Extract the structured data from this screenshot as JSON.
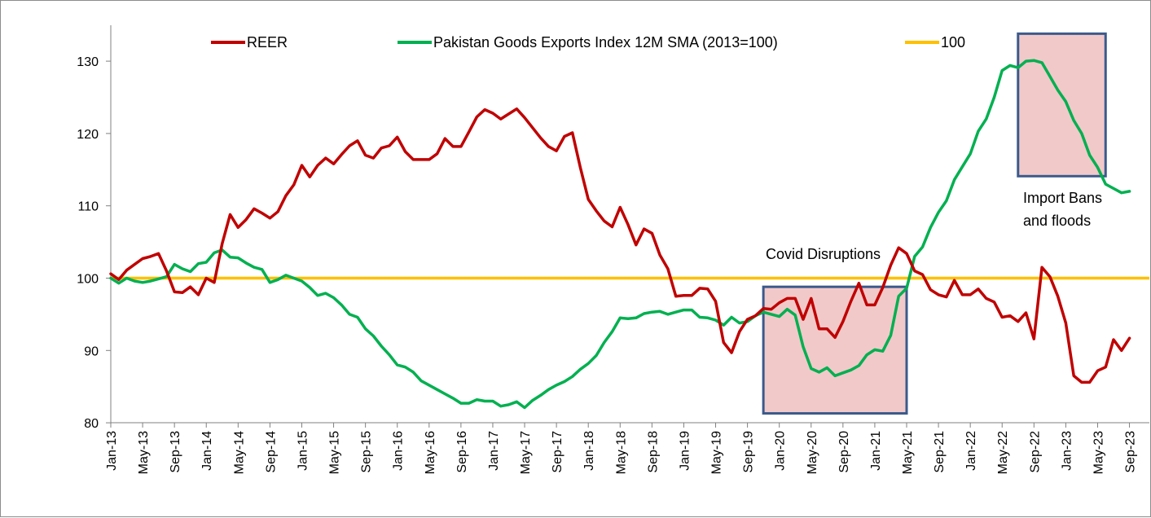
{
  "chart_data": {
    "type": "line",
    "title": "",
    "xlabel": "",
    "ylabel": "",
    "ylim": [
      80,
      135
    ],
    "yticks": [
      80,
      90,
      100,
      110,
      120,
      130
    ],
    "x_tick_labels": [
      "Jan-13",
      "May-13",
      "Sep-13",
      "Jan-14",
      "May-14",
      "Sep-14",
      "Jan-15",
      "May-15",
      "Sep-15",
      "Jan-16",
      "May-16",
      "Sep-16",
      "Jan-17",
      "May-17",
      "Sep-17",
      "Jan-18",
      "May-18",
      "Sep-18",
      "Jan-19",
      "May-19",
      "Sep-19",
      "Jan-20",
      "May-20",
      "Sep-20",
      "Jan-21",
      "May-21",
      "Sep-21",
      "Jan-22",
      "May-22",
      "Sep-22",
      "Jan-23",
      "May-23",
      "Sep-23"
    ],
    "x_start": "Jan-13",
    "legend_placement": "top",
    "grid": false,
    "series": [
      {
        "name": "REER",
        "color": "#c00000",
        "values": [
          100.6,
          99.8,
          101.1,
          101.9,
          102.7,
          103.0,
          103.4,
          101.0,
          98.1,
          98.0,
          98.8,
          97.7,
          100.0,
          99.4,
          104.8,
          108.8,
          107.0,
          108.1,
          109.6,
          109.0,
          108.3,
          109.2,
          111.4,
          112.9,
          115.6,
          114.0,
          115.6,
          116.6,
          115.8,
          117.1,
          118.3,
          119.0,
          117.0,
          116.6,
          118.0,
          118.3,
          119.5,
          117.5,
          116.4,
          116.4,
          116.4,
          117.2,
          119.3,
          118.2,
          118.2,
          120.2,
          122.3,
          123.3,
          122.8,
          122.0,
          122.7,
          123.4,
          122.2,
          120.8,
          119.4,
          118.2,
          117.6,
          119.6,
          120.1,
          115.3,
          110.9,
          109.3,
          107.9,
          107.1,
          109.8,
          107.4,
          104.6,
          106.8,
          106.2,
          103.2,
          101.3,
          97.5,
          97.6,
          97.6,
          98.6,
          98.5,
          96.8,
          91.1,
          89.7,
          92.6,
          94.3,
          94.8,
          95.8,
          95.7,
          96.6,
          97.2,
          97.2,
          94.3,
          97.2,
          93.0,
          93.0,
          91.8,
          94.0,
          96.8,
          99.3,
          96.3,
          96.3,
          98.7,
          101.8,
          104.2,
          103.4,
          101.0,
          100.5,
          98.4,
          97.7,
          97.4,
          99.7,
          97.7,
          97.7,
          98.5,
          97.2,
          96.7,
          94.6,
          94.8,
          94.0,
          95.2,
          91.6,
          101.5,
          100.2,
          97.5,
          93.8,
          86.5,
          85.6,
          85.6,
          87.2,
          87.7,
          91.5,
          90.0,
          91.7
        ]
      },
      {
        "name": "Pakistan Goods Exports Index 12M SMA (2013=100)",
        "color": "#00b050",
        "values": [
          100.0,
          99.3,
          100.0,
          99.6,
          99.4,
          99.6,
          99.9,
          100.2,
          101.9,
          101.3,
          100.9,
          102.0,
          102.2,
          103.5,
          103.9,
          102.9,
          102.8,
          102.1,
          101.5,
          101.2,
          99.4,
          99.8,
          100.4,
          100.0,
          99.6,
          98.7,
          97.6,
          97.9,
          97.3,
          96.3,
          95.0,
          94.6,
          93.0,
          92.0,
          90.6,
          89.4,
          88.0,
          87.7,
          87.0,
          85.8,
          85.2,
          84.6,
          84.0,
          83.4,
          82.7,
          82.7,
          83.2,
          83.0,
          83.0,
          82.3,
          82.5,
          82.9,
          82.1,
          83.1,
          83.8,
          84.6,
          85.2,
          85.7,
          86.4,
          87.4,
          88.2,
          89.3,
          91.1,
          92.6,
          94.5,
          94.4,
          94.5,
          95.1,
          95.3,
          95.4,
          95.0,
          95.3,
          95.6,
          95.6,
          94.6,
          94.5,
          94.2,
          93.5,
          94.6,
          93.8,
          94.0,
          94.8,
          95.3,
          95.0,
          94.7,
          95.7,
          94.9,
          90.5,
          87.5,
          87.0,
          87.6,
          86.5,
          86.9,
          87.3,
          87.9,
          89.4,
          90.1,
          89.9,
          92.1,
          97.5,
          98.6,
          103.0,
          104.3,
          107.0,
          109.1,
          110.7,
          113.6,
          115.4,
          117.2,
          120.3,
          122.0,
          125.0,
          128.7,
          129.4,
          129.1,
          130.0,
          130.1,
          129.8,
          127.9,
          126.0,
          124.4,
          121.8,
          120.0,
          117.0,
          115.3,
          113.0,
          112.4,
          111.8,
          112.0
        ]
      },
      {
        "name": "100",
        "color": "#ffc000",
        "values": [
          100,
          100
        ]
      }
    ],
    "annotations": [
      {
        "text": "Covid Disruptions"
      },
      {
        "text": "Import Bans",
        "line2": "and floods"
      }
    ],
    "highlight_boxes": [
      {
        "from": "Nov-19",
        "to": "May-21",
        "y_from": 81.3,
        "y_to": 98.8
      },
      {
        "from": "Jul-22",
        "to": "Jun-23",
        "y_from": 114.1,
        "y_to": 133.8
      }
    ]
  }
}
